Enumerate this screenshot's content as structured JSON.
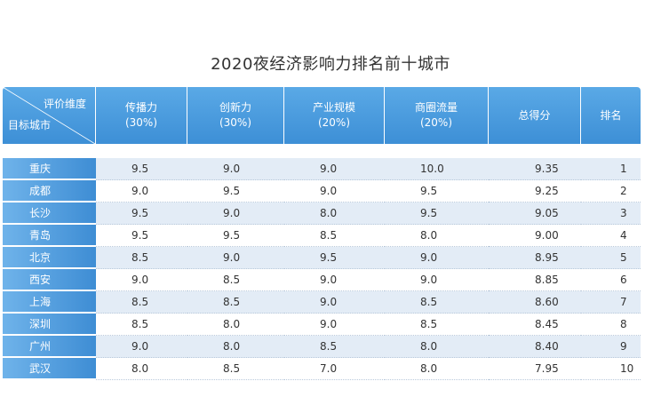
{
  "chart_data": {
    "type": "table",
    "title": "2020夜经济影响力排名前十城市",
    "corner": {
      "top_label": "评价维度",
      "bottom_label": "目标城市"
    },
    "columns": [
      {
        "name": "传播力",
        "weight": "(30%)"
      },
      {
        "name": "创新力",
        "weight": "(30%)"
      },
      {
        "name": "产业规模",
        "weight": "(20%)"
      },
      {
        "name": "商圈流量",
        "weight": "(20%)"
      },
      {
        "name": "总得分",
        "weight": ""
      },
      {
        "name": "排名",
        "weight": ""
      }
    ],
    "rows": [
      {
        "city": "重庆",
        "values": [
          "9.5",
          "9.0",
          "9.0",
          "10.0",
          "9.35",
          "1"
        ]
      },
      {
        "city": "成都",
        "values": [
          "9.0",
          "9.5",
          "9.0",
          "9.5",
          "9.25",
          "2"
        ]
      },
      {
        "city": "长沙",
        "values": [
          "9.5",
          "9.0",
          "8.0",
          "9.5",
          "9.05",
          "3"
        ]
      },
      {
        "city": "青岛",
        "values": [
          "9.5",
          "9.5",
          "8.5",
          "8.0",
          "9.00",
          "4"
        ]
      },
      {
        "city": "北京",
        "values": [
          "8.5",
          "9.0",
          "9.5",
          "9.0",
          "8.95",
          "5"
        ]
      },
      {
        "city": "西安",
        "values": [
          "9.0",
          "8.5",
          "9.0",
          "9.0",
          "8.85",
          "6"
        ]
      },
      {
        "city": "上海",
        "values": [
          "8.5",
          "8.5",
          "9.0",
          "8.5",
          "8.60",
          "7"
        ]
      },
      {
        "city": "深圳",
        "values": [
          "8.5",
          "8.0",
          "9.0",
          "8.5",
          "8.45",
          "8"
        ]
      },
      {
        "city": "广州",
        "values": [
          "9.0",
          "8.0",
          "8.5",
          "8.0",
          "8.40",
          "9"
        ]
      },
      {
        "city": "武汉",
        "values": [
          "8.0",
          "8.5",
          "7.0",
          "8.0",
          "7.95",
          "10"
        ]
      }
    ]
  },
  "colors": {
    "header_blue": "#3d8fd6",
    "city_blue": "#3e8dd4",
    "stripe": "#e3ecf6"
  }
}
